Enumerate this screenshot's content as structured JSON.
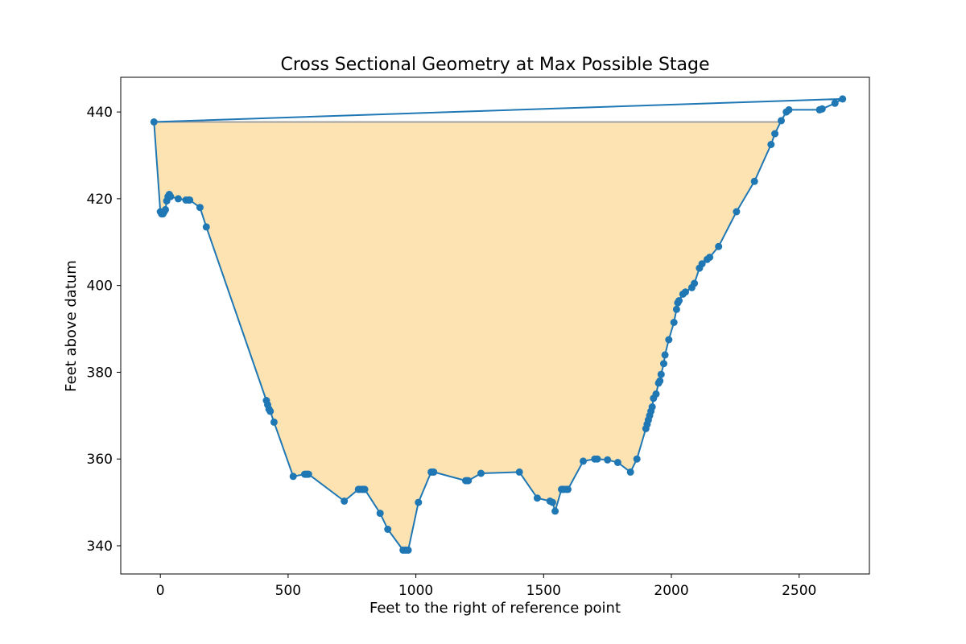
{
  "chart_data": {
    "type": "line",
    "title": "Cross Sectional Geometry at Max Possible Stage",
    "xlabel": "Feet to the right of reference point",
    "ylabel": "Feet above datum",
    "xlim": [
      -155,
      2775
    ],
    "ylim": [
      333.5,
      448
    ],
    "xticks": [
      0,
      500,
      1000,
      1500,
      2000,
      2500
    ],
    "yticks": [
      340,
      360,
      380,
      400,
      420,
      440
    ],
    "grid": false,
    "max_stage": 437.7,
    "fill_color": "#fde3b2",
    "stage_line_color": "#a0a0a0",
    "line_color": "#1f77b4",
    "series": [
      {
        "x": [
          -25,
          0,
          5,
          10,
          15,
          20,
          25,
          30,
          35,
          40,
          70,
          100,
          110,
          115,
          155,
          180,
          415,
          420,
          425,
          430,
          445,
          520,
          565,
          570,
          575,
          580,
          720,
          775,
          780,
          790,
          795,
          800,
          860,
          890,
          950,
          960,
          970,
          1010,
          1060,
          1065,
          1070,
          1195,
          1200,
          1205,
          1255,
          1405,
          1475,
          1525,
          1535,
          1545,
          1570,
          1575,
          1580,
          1590,
          1595,
          1655,
          1700,
          1710,
          1750,
          1790,
          1840,
          1865,
          1900,
          1905,
          1910,
          1915,
          1920,
          1925,
          1930,
          1940,
          1950,
          1955,
          1960,
          1970,
          1975,
          1990,
          2010,
          2020,
          2025,
          2030,
          2045,
          2055,
          2080,
          2090,
          2110,
          2120,
          2140,
          2150,
          2185,
          2255,
          2325,
          2390,
          2405,
          2430,
          2450,
          2460,
          2580,
          2590,
          2640,
          2670,
          -25
        ],
        "y": [
          437.7,
          417,
          416.5,
          416.5,
          417,
          417.5,
          419.5,
          420.5,
          421,
          420.5,
          420,
          419.7,
          419.7,
          419.7,
          418,
          413.5,
          373.5,
          372.5,
          371.5,
          371,
          368.5,
          356,
          356.5,
          356.5,
          356.5,
          356.5,
          350.3,
          353,
          353,
          353,
          353,
          353,
          347.5,
          343.8,
          339,
          339,
          339,
          350,
          357,
          357,
          357,
          355,
          355,
          355,
          356.7,
          357,
          351,
          350.3,
          350,
          348,
          353,
          353,
          353,
          353,
          353,
          359.5,
          360,
          360,
          359.8,
          359.2,
          357,
          360,
          367,
          368,
          369,
          370,
          371,
          372,
          374,
          375,
          377.5,
          378,
          379.5,
          382,
          384,
          387.5,
          391.5,
          394.5,
          396,
          396.5,
          398,
          398.5,
          399.5,
          400.5,
          404,
          405,
          406,
          406.5,
          409,
          417,
          424,
          432.5,
          435,
          438,
          440,
          440.5,
          440.5,
          440.7,
          442,
          443,
          437.7
        ]
      }
    ]
  }
}
